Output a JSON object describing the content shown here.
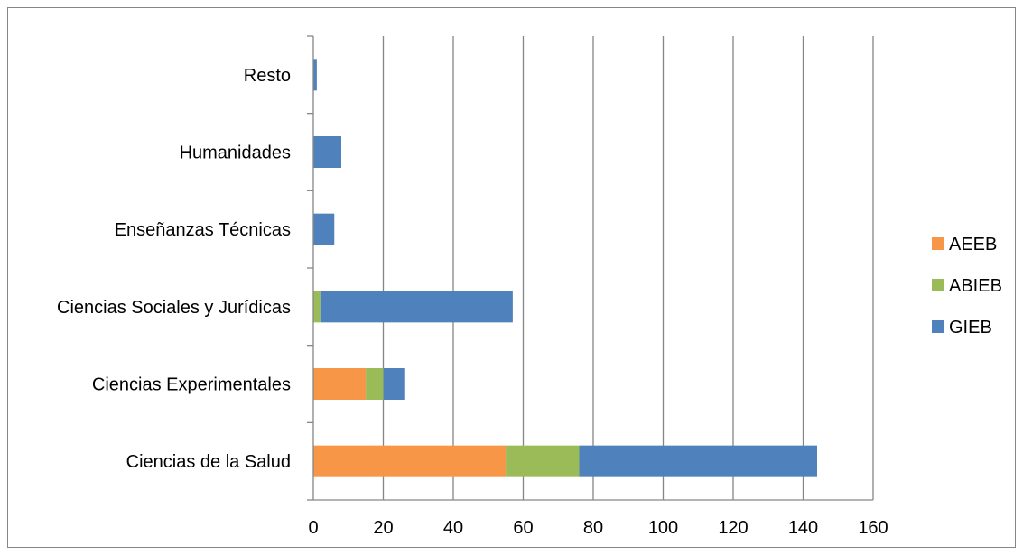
{
  "chart_data": {
    "type": "bar",
    "orientation": "horizontal",
    "stacked": true,
    "categories": [
      "Ciencias de la Salud",
      "Ciencias Experimentales",
      "Ciencias Sociales y Jurídicas",
      "Enseñanzas Técnicas",
      "Humanidades",
      "Resto"
    ],
    "series": [
      {
        "name": "AEEB",
        "color": "#F79646",
        "values": [
          55,
          15,
          0,
          0,
          0,
          0
        ]
      },
      {
        "name": "ABIEB",
        "color": "#9BBB59",
        "values": [
          21,
          5,
          2,
          0,
          0,
          0
        ]
      },
      {
        "name": "GIEB",
        "color": "#4F81BD",
        "values": [
          68,
          6,
          55,
          6,
          8,
          1
        ]
      }
    ],
    "xlim": [
      0,
      160
    ],
    "xticks": [
      "0",
      "20",
      "40",
      "60",
      "80",
      "100",
      "120",
      "140",
      "160"
    ],
    "grid": "vertical",
    "legend": "right"
  }
}
